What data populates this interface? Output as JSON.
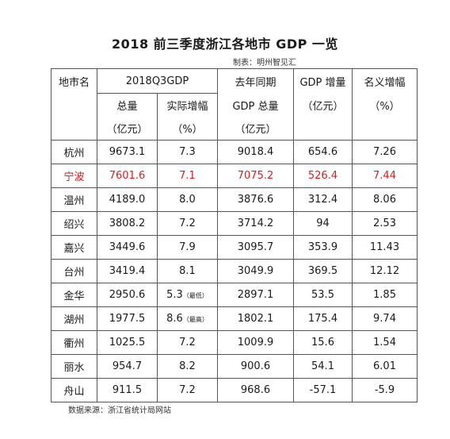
{
  "title": "2018 前三季度浙江各地市 GDP 一览",
  "maker": "制表：明州智见汇",
  "source": "数据来源：浙江省统计局网站",
  "headers": {
    "city": "地市名",
    "q3gdp": "2018Q3GDP",
    "total": "总量",
    "total_unit": "（亿元）",
    "real_growth": "实际增幅",
    "real_growth_unit": "（%）",
    "last_year_line1": "去年同期",
    "last_year_line2": "GDP 总量",
    "last_year_unit": "（亿元）",
    "increase_line1": "GDP 增量",
    "increase_unit": "（亿元）",
    "nominal_line1": "名义增幅",
    "nominal_unit": "（%）"
  },
  "rows": [
    {
      "city": "杭州",
      "total": "9673.1",
      "growth": "7.3",
      "note": "",
      "last": "9018.4",
      "inc": "654.6",
      "nominal": "7.26"
    },
    {
      "city": "宁波",
      "total": "7601.6",
      "growth": "7.1",
      "note": "",
      "last": "7075.2",
      "inc": "526.4",
      "nominal": "7.44"
    },
    {
      "city": "温州",
      "total": "4189.0",
      "growth": "8.0",
      "note": "",
      "last": "3876.6",
      "inc": "312.4",
      "nominal": "8.06"
    },
    {
      "city": "绍兴",
      "total": "3808.2",
      "growth": "7.2",
      "note": "",
      "last": "3714.2",
      "inc": "94",
      "nominal": "2.53"
    },
    {
      "city": "嘉兴",
      "total": "3449.6",
      "growth": "7.9",
      "note": "",
      "last": "3095.7",
      "inc": "353.9",
      "nominal": "11.43"
    },
    {
      "city": "台州",
      "total": "3419.4",
      "growth": "8.1",
      "note": "",
      "last": "3049.9",
      "inc": "369.5",
      "nominal": "12.12"
    },
    {
      "city": "金华",
      "total": "2950.6",
      "growth": "5.3",
      "note": "（最低）",
      "last": "2897.1",
      "inc": "53.5",
      "nominal": "1.85"
    },
    {
      "city": "湖州",
      "total": "1977.5",
      "growth": "8.6",
      "note": "（最高）",
      "last": "1802.1",
      "inc": "175.4",
      "nominal": "9.74"
    },
    {
      "city": "衢州",
      "total": "1025.5",
      "growth": "7.2",
      "note": "",
      "last": "1009.9",
      "inc": "15.6",
      "nominal": "1.54"
    },
    {
      "city": "丽水",
      "total": "954.7",
      "growth": "8.2",
      "note": "",
      "last": "900.6",
      "inc": "54.1",
      "nominal": "6.01"
    },
    {
      "city": "舟山",
      "total": "911.5",
      "growth": "7.2",
      "note": "",
      "last": "968.6",
      "inc": "-57.1",
      "nominal": "-5.9"
    }
  ],
  "highlight_color": "#d21e1e"
}
